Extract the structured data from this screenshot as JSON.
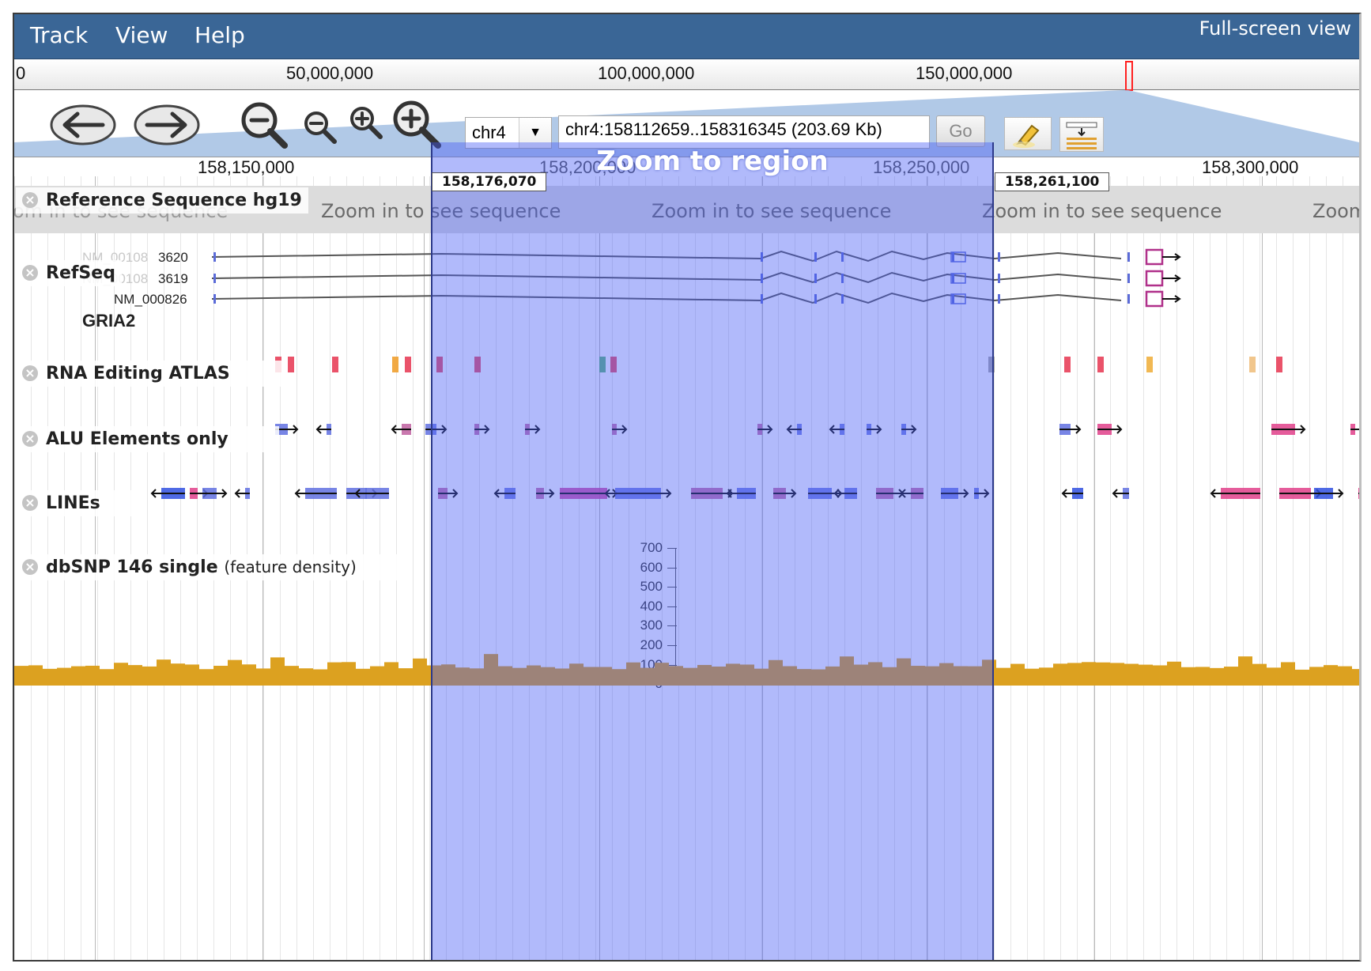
{
  "menu": {
    "track": "Track",
    "view": "View",
    "help": "Help",
    "fullscreen": "Full-screen view"
  },
  "overview": {
    "labels": [
      "0",
      "50,000,000",
      "100,000,000",
      "150,000,000"
    ]
  },
  "navigation": {
    "chromosome": "chr4",
    "location": "chr4:158112659..158316345 (203.69 Kb)",
    "go_label": "Go"
  },
  "scale": {
    "labels": [
      "158,150,000",
      "158,200,000",
      "158,250,000",
      "158,300,000"
    ]
  },
  "region": {
    "title": "Zoom to region",
    "start_label": "158,176,070",
    "end_label": "158,261,100"
  },
  "tracks": {
    "reference": {
      "label": "Reference Sequence hg19",
      "placeholder": "Zoom in to see sequence",
      "fragments": [
        "om in to see sequence",
        "Zoom in to see sequence",
        "Zoom in to see sequence",
        "Zoom in to see sequence",
        "Zoom"
      ]
    },
    "refseq": {
      "label": "RefSeq",
      "transcripts": [
        "NM_001083620",
        "NM_001083619",
        "NM_000826"
      ],
      "gene": "GRIA2"
    },
    "rna_editing": {
      "label": "RNA Editing ATLAS"
    },
    "alu": {
      "label": "ALU Elements only"
    },
    "lines": {
      "label": "LINEs"
    },
    "dbsnp": {
      "label": "dbSNP 146 single",
      "sublabel": "(feature density)",
      "y_ticks": [
        "700",
        "600",
        "500",
        "400",
        "300",
        "200",
        "100",
        "0"
      ]
    }
  },
  "colors": {
    "menubar": "#3a6696",
    "region": "#4a5af5",
    "density": "#dca120",
    "rna_red": "#e8405a"
  }
}
